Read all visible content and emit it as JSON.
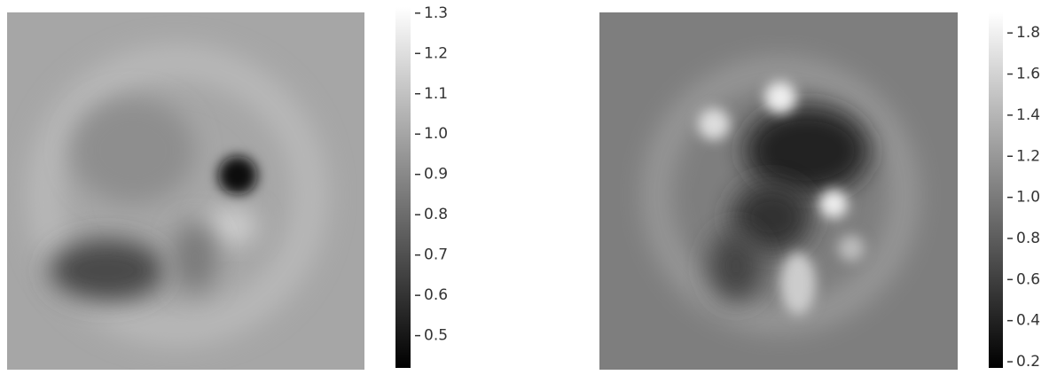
{
  "chart_data": [
    {
      "type": "image",
      "cmap": [
        "#000000",
        "#ffffff"
      ],
      "zlim": [
        0.42,
        1.315
      ],
      "zticks": [
        0.5,
        0.6,
        0.7,
        0.8,
        0.9,
        {
          "value": 1,
          "label": "1.0"
        },
        1.1,
        1.2,
        1.3
      ]
    },
    {
      "type": "image",
      "cmap": [
        "#000000",
        "#ffffff"
      ],
      "zlim": [
        0.17,
        1.9
      ],
      "zticks": [
        0.2,
        0.4,
        0.6,
        0.8,
        {
          "value": 1,
          "label": "1.0"
        },
        1.2,
        1.4,
        1.6,
        1.8
      ]
    }
  ]
}
